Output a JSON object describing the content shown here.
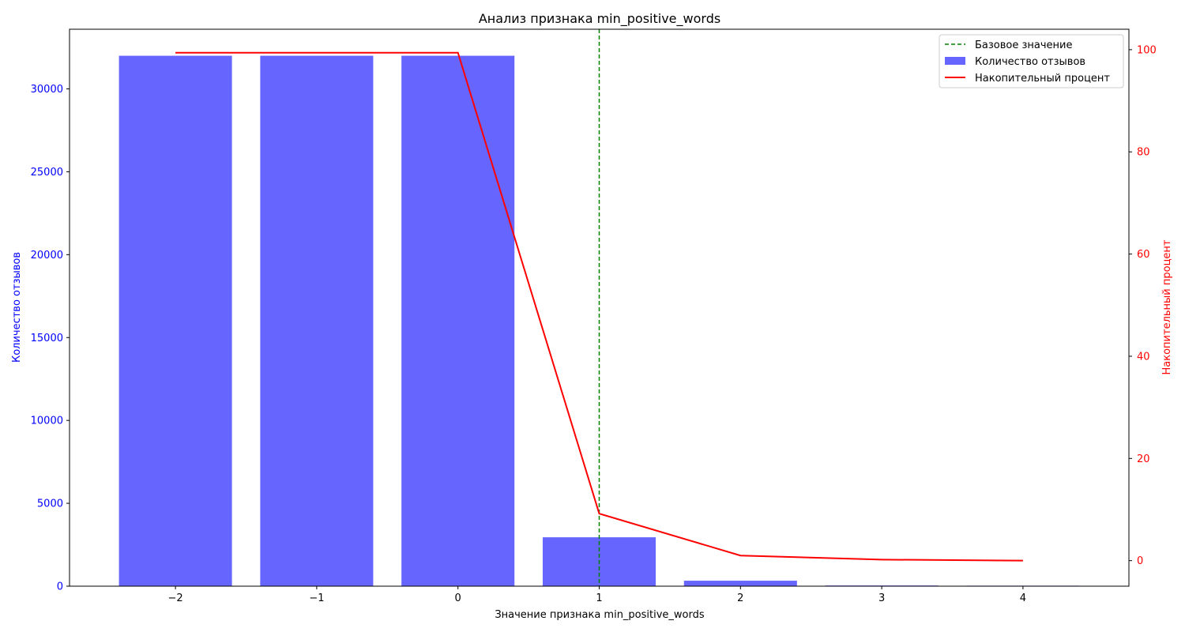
{
  "chart_data": {
    "type": "bar",
    "title": "Анализ признака min_positive_words",
    "xlabel": "Значение признака min_positive_words",
    "ylabel_left": "Количество отзывов",
    "ylabel_right": "Накопительный процент",
    "categories": [
      "−2",
      "−1",
      "0",
      "1",
      "2",
      "3",
      "4"
    ],
    "x": [
      -2,
      -1,
      0,
      1,
      2,
      3,
      4
    ],
    "xlim": [
      -2.75,
      4.75
    ],
    "ylim_left": [
      0,
      33600
    ],
    "ylim_right": [
      -5,
      104
    ],
    "left_ticks": [
      0,
      5000,
      10000,
      15000,
      20000,
      25000,
      30000
    ],
    "right_ticks": [
      0,
      20,
      40,
      60,
      80,
      100
    ],
    "baseline_x": 1,
    "grid": false,
    "legend_position": "upper right",
    "colors": {
      "bars": "#6666ff",
      "line": "#ff0000",
      "baseline": "#008000",
      "left_axis": "#0000ff",
      "right_axis": "#ff0000"
    },
    "series": [
      {
        "name": "Количество отзывов",
        "kind": "bar",
        "axis": "left",
        "values": [
          32000,
          32000,
          32000,
          2950,
          330,
          40,
          30
        ]
      },
      {
        "name": "Накопительный процент",
        "kind": "line",
        "axis": "right",
        "values": [
          99.4,
          99.4,
          99.4,
          9.2,
          1.0,
          0.2,
          0.0
        ]
      }
    ],
    "legend": [
      "Базовое значение",
      "Количество отзывов",
      "Накопительный процент"
    ]
  }
}
